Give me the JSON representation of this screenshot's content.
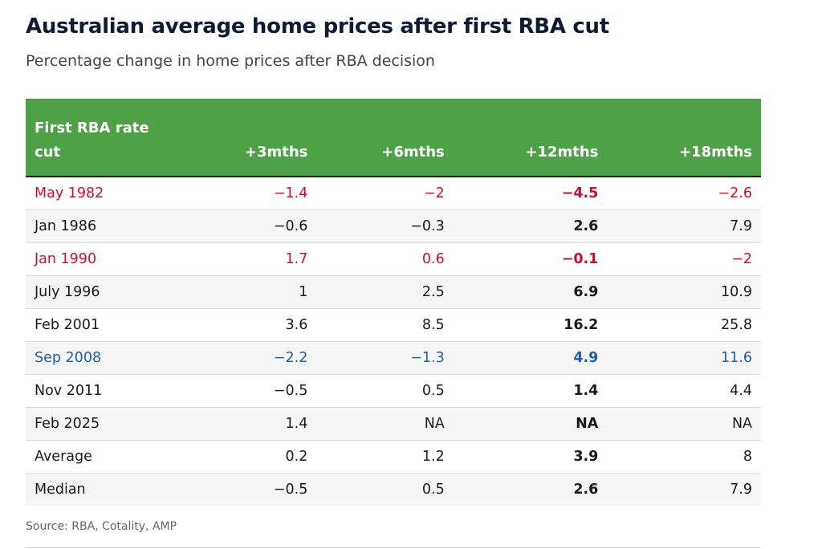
{
  "title": "Australian average home prices after first RBA cut",
  "subtitle": "Percentage change in home prices after RBA decision",
  "source": "Source: RBA, Cotality, AMP",
  "colors": {
    "header_bg": "#4ea147",
    "red": "#c8102e",
    "blue": "#1f5ea8",
    "default": "#1a1a1a"
  },
  "chart_data": {
    "type": "table",
    "columns": [
      "First RBA rate cut",
      "+3mths",
      "+6mths",
      "+12mths",
      "+18mths"
    ],
    "rows": [
      {
        "label": "May 1982",
        "values": [
          "−1.4",
          "−2",
          "−4.5",
          "−2.6"
        ],
        "color": "red"
      },
      {
        "label": "Jan 1986",
        "values": [
          "−0.6",
          "−0.3",
          "2.6",
          "7.9"
        ],
        "color": "default"
      },
      {
        "label": "Jan 1990",
        "values": [
          "1.7",
          "0.6",
          "−0.1",
          "−2"
        ],
        "color": "red"
      },
      {
        "label": "July 1996",
        "values": [
          "1",
          "2.5",
          "6.9",
          "10.9"
        ],
        "color": "default"
      },
      {
        "label": "Feb 2001",
        "values": [
          "3.6",
          "8.5",
          "16.2",
          "25.8"
        ],
        "color": "default"
      },
      {
        "label": "Sep 2008",
        "values": [
          "−2.2",
          "−1.3",
          "4.9",
          "11.6"
        ],
        "color": "blue"
      },
      {
        "label": "Nov 2011",
        "values": [
          "−0.5",
          "0.5",
          "1.4",
          "4.4"
        ],
        "color": "default"
      },
      {
        "label": "Feb 2025",
        "values": [
          "1.4",
          "NA",
          "NA",
          "NA"
        ],
        "color": "default"
      },
      {
        "label": "Average",
        "values": [
          "0.2",
          "1.2",
          "3.9",
          "8"
        ],
        "color": "default"
      },
      {
        "label": "Median",
        "values": [
          "−0.5",
          "0.5",
          "2.6",
          "7.9"
        ],
        "color": "default"
      }
    ],
    "bold_column": "+12mths"
  }
}
